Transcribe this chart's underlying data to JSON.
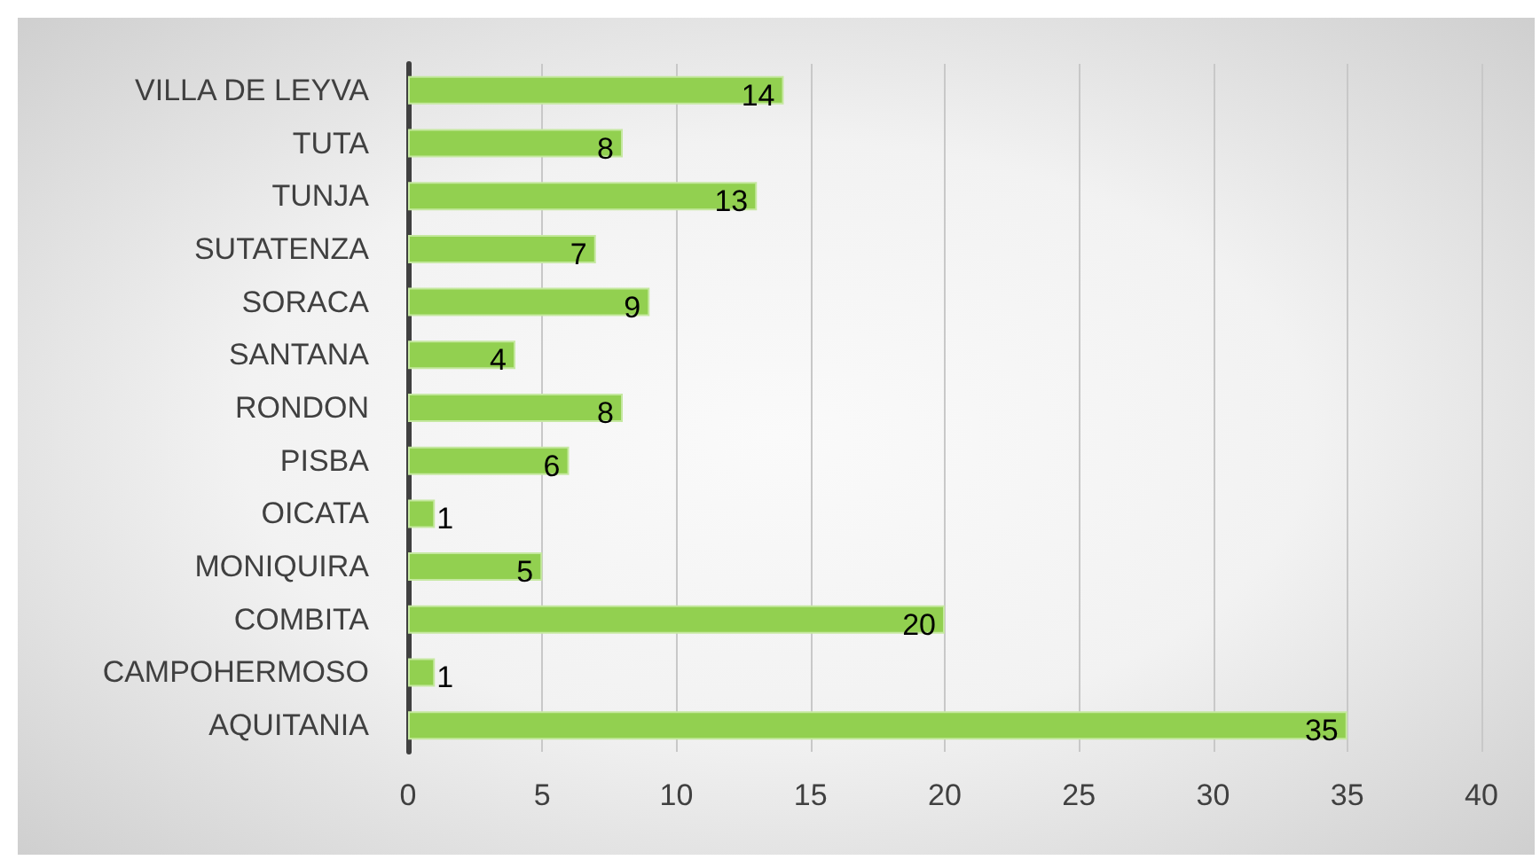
{
  "chart_data": {
    "type": "bar",
    "orientation": "horizontal",
    "categories": [
      "VILLA DE LEYVA",
      "TUTA",
      "TUNJA",
      "SUTATENZA",
      "SORACA",
      "SANTANA",
      "RONDON",
      "PISBA",
      "OICATA",
      "MONIQUIRA",
      "COMBITA",
      "CAMPOHERMOSO",
      "AQUITANIA"
    ],
    "values": [
      14,
      8,
      13,
      7,
      9,
      4,
      8,
      6,
      1,
      5,
      20,
      1,
      35
    ],
    "color": "#92d050",
    "xlim": [
      0,
      40
    ],
    "xticks": [
      0,
      5,
      10,
      15,
      20,
      25,
      30,
      35,
      40
    ],
    "grid": "x",
    "data_labels": true
  }
}
